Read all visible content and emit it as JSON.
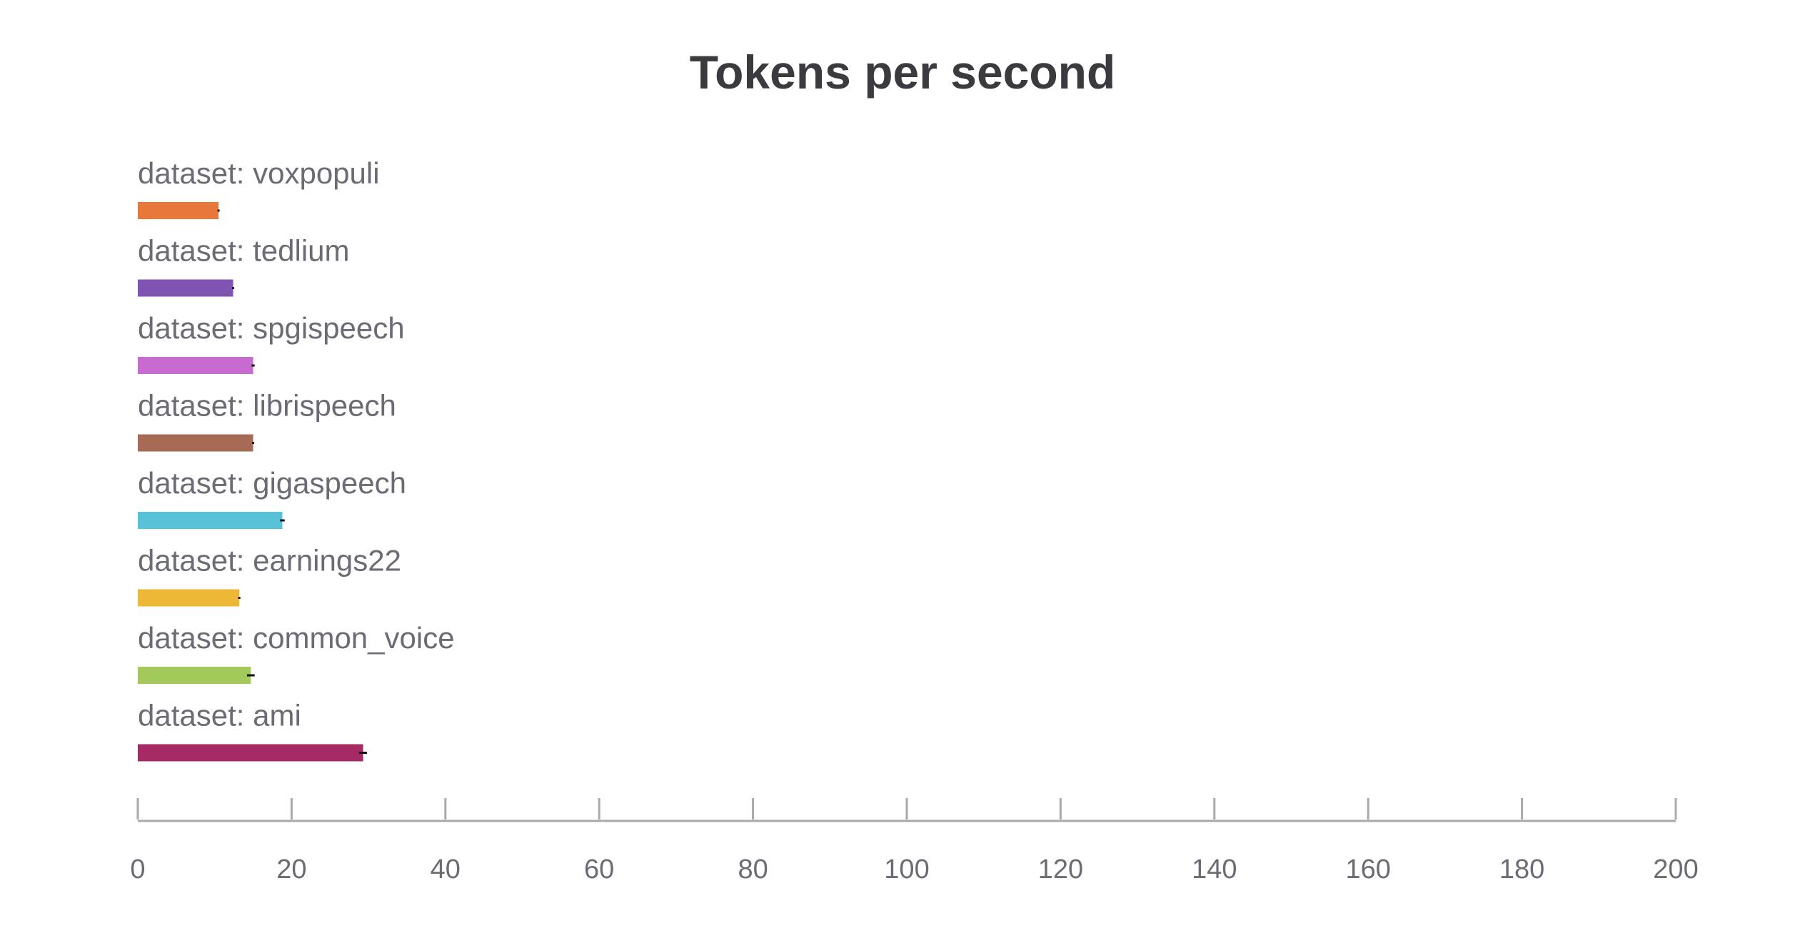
{
  "chart_data": {
    "type": "bar",
    "orientation": "horizontal",
    "title": "Tokens per second",
    "xlabel": "",
    "ylabel": "",
    "xlim": [
      0,
      200
    ],
    "x_ticks": [
      0,
      20,
      40,
      60,
      80,
      100,
      120,
      140,
      160,
      180,
      200
    ],
    "grid": false,
    "categories": [
      "dataset: voxpopuli",
      "dataset: tedlium",
      "dataset: spgispeech",
      "dataset: librispeech",
      "dataset: gigaspeech",
      "dataset: earnings22",
      "dataset: common_voice",
      "dataset: ami"
    ],
    "values": [
      10.5,
      12.4,
      15.0,
      15.0,
      18.8,
      13.2,
      14.7,
      29.3
    ],
    "error": [
      0.1,
      0.1,
      0.2,
      0.0,
      0.3,
      0.1,
      0.5,
      0.5
    ],
    "colors": [
      "#e8773a",
      "#7f54b3",
      "#c76bd0",
      "#a66a55",
      "#58c3d8",
      "#edb836",
      "#a3c95a",
      "#a62a63"
    ]
  }
}
